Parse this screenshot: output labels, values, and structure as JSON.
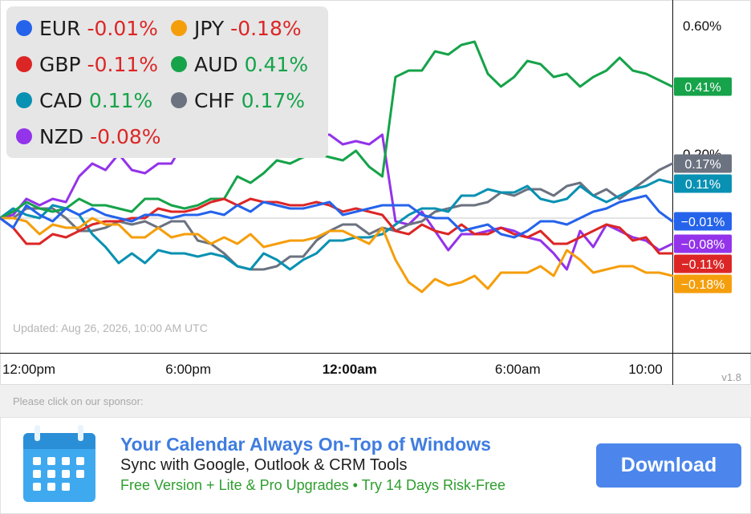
{
  "chart_data": {
    "type": "line",
    "title": "",
    "xlabel": "",
    "ylabel": "",
    "x_range": [
      0,
      1
    ],
    "x_ticks": [
      {
        "label": "12:00pm",
        "x": 0.043,
        "bold": false
      },
      {
        "label": "6:00pm",
        "x": 0.28,
        "bold": false
      },
      {
        "label": "12:00am",
        "x": 0.52,
        "bold": true
      },
      {
        "label": "6:00am",
        "x": 0.77,
        "bold": false
      },
      {
        "label": "10:00",
        "x": 0.96,
        "bold": false
      }
    ],
    "ylim": [
      -0.42,
      0.68
    ],
    "y_ticks": [
      {
        "label": "0.60%",
        "value": 0.6
      },
      {
        "label": "0.20%",
        "value": 0.2
      }
    ],
    "series": [
      {
        "name": "EUR",
        "change": "-0.01%",
        "color": "#2563eb",
        "end_label": "−0.01%",
        "values": [
          0.0,
          -0.03,
          0.04,
          0.01,
          -0.01,
          0.03,
          0.01,
          0.03,
          0.01,
          0.0,
          -0.01,
          0.01,
          0.01,
          0.0,
          0.01,
          0.01,
          0.02,
          0.01,
          0.04,
          0.02,
          0.05,
          0.04,
          0.03,
          0.03,
          0.04,
          0.05,
          0.01,
          0.02,
          0.03,
          0.04,
          0.04,
          0.04,
          0.01,
          0.0,
          0.0,
          -0.04,
          -0.03,
          -0.02,
          -0.05,
          -0.06,
          -0.04,
          -0.01,
          -0.01,
          -0.02,
          0.0,
          0.02,
          0.03,
          0.05,
          0.06,
          0.07,
          0.02,
          -0.01
        ]
      },
      {
        "name": "JPY",
        "change": "-0.18%",
        "color": "#f59e0b",
        "end_label": "−0.18%",
        "values": [
          0.0,
          0.0,
          -0.01,
          -0.05,
          -0.02,
          -0.03,
          -0.03,
          0.0,
          -0.02,
          -0.02,
          -0.06,
          -0.06,
          -0.03,
          -0.06,
          -0.05,
          -0.05,
          -0.08,
          -0.06,
          -0.08,
          -0.05,
          -0.09,
          -0.08,
          -0.07,
          -0.07,
          -0.06,
          -0.04,
          -0.04,
          -0.06,
          -0.08,
          -0.03,
          -0.13,
          -0.2,
          -0.23,
          -0.19,
          -0.21,
          -0.2,
          -0.18,
          -0.22,
          -0.17,
          -0.17,
          -0.17,
          -0.15,
          -0.18,
          -0.1,
          -0.13,
          -0.17,
          -0.16,
          -0.15,
          -0.15,
          -0.17,
          -0.17,
          -0.18
        ]
      },
      {
        "name": "GBP",
        "change": "-0.11%",
        "color": "#dc2626",
        "end_label": "−0.11%",
        "values": [
          0.0,
          -0.03,
          -0.08,
          -0.08,
          -0.05,
          -0.06,
          -0.04,
          -0.02,
          -0.01,
          -0.01,
          0.0,
          0.0,
          0.03,
          0.02,
          0.02,
          0.03,
          0.05,
          0.06,
          0.04,
          0.06,
          0.05,
          0.05,
          0.04,
          0.04,
          0.05,
          0.04,
          0.02,
          0.03,
          0.02,
          0.01,
          -0.04,
          -0.05,
          -0.02,
          -0.04,
          -0.05,
          -0.02,
          -0.05,
          -0.05,
          -0.03,
          -0.05,
          -0.06,
          -0.04,
          -0.08,
          -0.08,
          -0.06,
          -0.04,
          -0.02,
          -0.03,
          -0.07,
          -0.06,
          -0.11,
          -0.11
        ]
      },
      {
        "name": "AUD",
        "change": "0.41%",
        "color": "#16a34a",
        "end_label": "0.41%",
        "values": [
          0.0,
          0.02,
          0.05,
          0.03,
          0.02,
          0.03,
          0.06,
          0.04,
          0.04,
          0.03,
          0.02,
          0.06,
          0.06,
          0.04,
          0.03,
          0.04,
          0.06,
          0.06,
          0.13,
          0.11,
          0.14,
          0.18,
          0.17,
          0.19,
          0.2,
          0.19,
          0.18,
          0.21,
          0.16,
          0.13,
          0.44,
          0.46,
          0.46,
          0.52,
          0.51,
          0.54,
          0.55,
          0.45,
          0.41,
          0.44,
          0.49,
          0.48,
          0.44,
          0.45,
          0.41,
          0.44,
          0.46,
          0.5,
          0.46,
          0.45,
          0.43,
          0.41
        ]
      },
      {
        "name": "CAD",
        "change": "0.11%",
        "color": "#0891b2",
        "end_label": "0.11%",
        "values": [
          0.0,
          0.03,
          0.01,
          0.0,
          0.04,
          0.03,
          0.01,
          -0.05,
          -0.09,
          -0.14,
          -0.11,
          -0.14,
          -0.1,
          -0.11,
          -0.11,
          -0.12,
          -0.11,
          -0.12,
          -0.15,
          -0.16,
          -0.11,
          -0.13,
          -0.16,
          -0.13,
          -0.11,
          -0.07,
          -0.07,
          -0.06,
          -0.06,
          -0.05,
          -0.02,
          0.01,
          0.03,
          0.03,
          0.02,
          0.07,
          0.07,
          0.09,
          0.08,
          0.08,
          0.1,
          0.06,
          0.05,
          0.06,
          0.1,
          0.07,
          0.05,
          0.07,
          0.09,
          0.1,
          0.12,
          0.11
        ]
      },
      {
        "name": "CHF",
        "change": "0.17%",
        "color": "#6b7280",
        "end_label": "0.17%",
        "values": [
          0.0,
          0.0,
          0.03,
          0.03,
          0.03,
          0.0,
          -0.04,
          -0.04,
          -0.03,
          -0.01,
          -0.02,
          -0.01,
          -0.03,
          -0.01,
          -0.01,
          -0.07,
          -0.08,
          -0.11,
          -0.15,
          -0.16,
          -0.16,
          -0.15,
          -0.12,
          -0.12,
          -0.07,
          -0.04,
          -0.02,
          -0.02,
          -0.05,
          -0.03,
          -0.04,
          -0.02,
          -0.01,
          0.02,
          0.03,
          0.04,
          0.04,
          0.05,
          0.08,
          0.07,
          0.09,
          0.09,
          0.07,
          0.1,
          0.11,
          0.07,
          0.09,
          0.06,
          0.09,
          0.12,
          0.15,
          0.17
        ]
      },
      {
        "name": "NZD",
        "change": "-0.08%",
        "color": "#9333ea",
        "end_label": "−0.08%",
        "values": [
          0.0,
          0.01,
          0.06,
          0.04,
          0.06,
          0.05,
          0.13,
          0.17,
          0.15,
          0.2,
          0.15,
          0.14,
          0.17,
          0.17,
          0.24,
          0.28,
          0.28,
          0.27,
          0.31,
          0.24,
          0.28,
          0.22,
          0.27,
          0.24,
          0.26,
          0.26,
          0.23,
          0.24,
          0.23,
          0.26,
          -0.01,
          -0.02,
          0.02,
          -0.04,
          -0.1,
          -0.05,
          -0.05,
          -0.04,
          -0.03,
          -0.04,
          -0.06,
          -0.07,
          -0.11,
          -0.16,
          -0.04,
          -0.09,
          -0.02,
          -0.04,
          -0.06,
          -0.07,
          -0.1,
          -0.08
        ]
      }
    ],
    "annotations": [
      {
        "label": "Updated: Aug 26, 2026, 10:00 AM UTC"
      }
    ],
    "version": "v1.8"
  },
  "sponsor": {
    "prompt": "Please click on our sponsor:",
    "title": "Your Calendar Always On-Top of Windows",
    "line1": "Sync with Google, Outlook & CRM Tools",
    "line2": "Free Version + Lite & Pro Upgrades • Try 14 Days Risk-Free",
    "button_label": "Download",
    "icon": "calendar-icon"
  }
}
